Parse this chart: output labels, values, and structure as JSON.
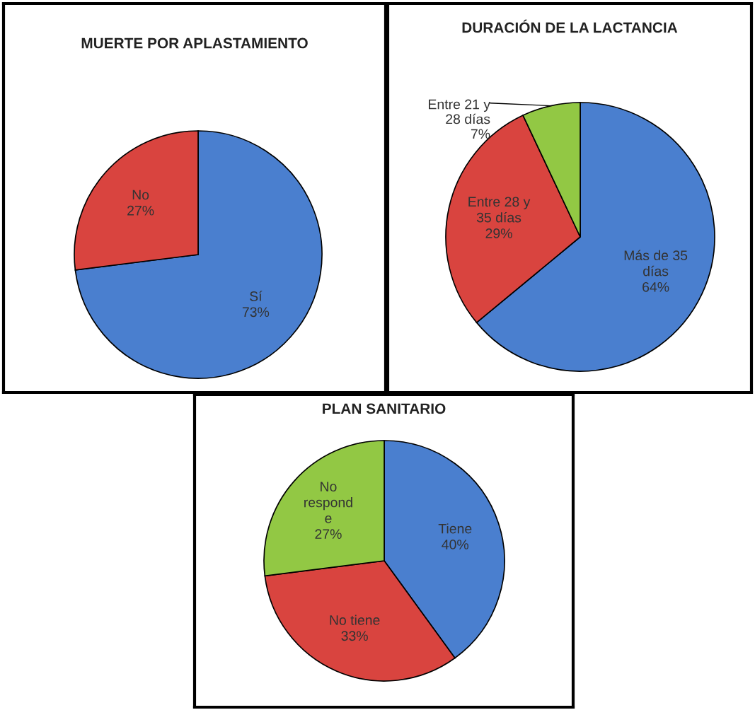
{
  "chart_data": [
    {
      "type": "pie",
      "title": "MUERTE POR APLASTAMIENTO",
      "categories": [
        "Sí",
        "No"
      ],
      "values": [
        73,
        27
      ],
      "value_labels": [
        "73%",
        "27%"
      ],
      "colors": [
        "#4a7fcf",
        "#d9443f"
      ],
      "legend": false
    },
    {
      "type": "pie",
      "title": "DURACIÓN DE LA LACTANCIA",
      "categories": [
        "Más de 35\ndías",
        "Entre 28 y\n35 días",
        "Entre 21 y\n28 días"
      ],
      "values": [
        64,
        29,
        7
      ],
      "value_labels": [
        "64%",
        "29%",
        "7%"
      ],
      "colors": [
        "#4a7fcf",
        "#d9443f",
        "#92c844"
      ],
      "legend": false
    },
    {
      "type": "pie",
      "title": "PLAN SANITARIO",
      "categories": [
        "Tiene",
        "No tiene",
        "No\nrespond\ne"
      ],
      "values": [
        40,
        33,
        27
      ],
      "value_labels": [
        "40%",
        "33%",
        "27%"
      ],
      "colors": [
        "#4a7fcf",
        "#d9443f",
        "#92c844"
      ],
      "legend": false
    }
  ]
}
